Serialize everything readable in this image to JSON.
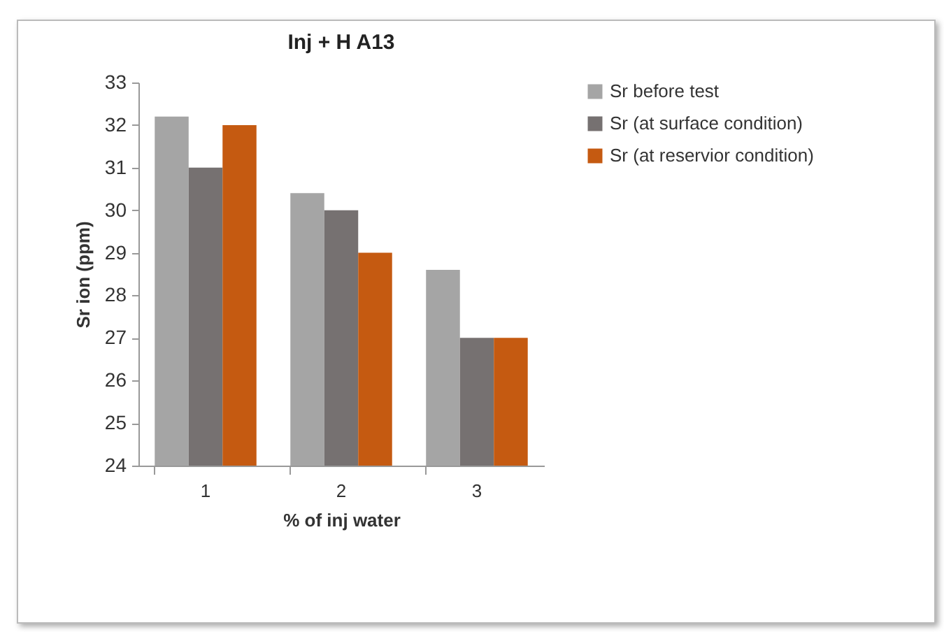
{
  "chart_data": {
    "type": "bar",
    "title": "Inj + H A13",
    "xlabel": "% of inj water",
    "ylabel": "Sr ion (ppm)",
    "categories": [
      "1",
      "2",
      "3"
    ],
    "series": [
      {
        "name": "Sr before test",
        "color": "#a5a5a5",
        "values": [
          32.2,
          30.4,
          28.6
        ]
      },
      {
        "name": "Sr (at surface condition)",
        "color": "#767171",
        "values": [
          31,
          30,
          27
        ]
      },
      {
        "name": "Sr (at reservior condition)",
        "color": "#c55a11",
        "values": [
          32,
          29,
          27
        ]
      }
    ],
    "ylim": [
      24,
      33
    ],
    "yticks": [
      24,
      25,
      26,
      27,
      28,
      29,
      30,
      31,
      32,
      33
    ],
    "grid": false,
    "legend": "right"
  }
}
